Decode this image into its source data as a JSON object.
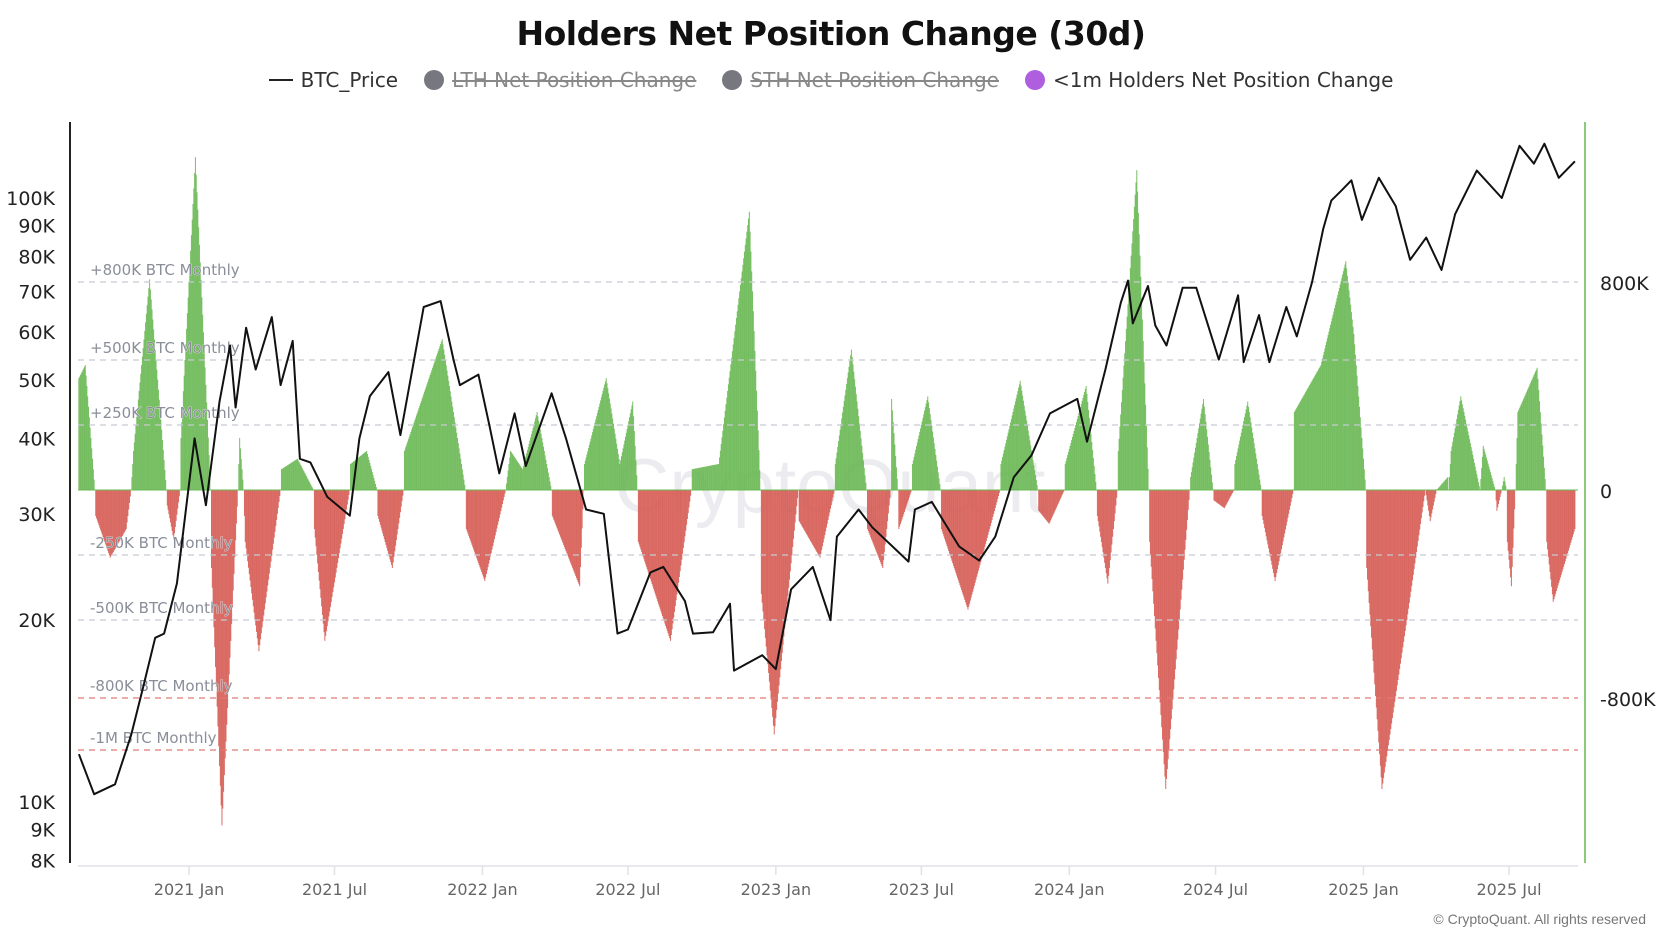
{
  "chart_data": {
    "type": "bar+line",
    "title": "Holders Net Position Change (30d)",
    "legend": [
      {
        "name": "BTC_Price",
        "marker": "line",
        "color": "#222222",
        "enabled": true
      },
      {
        "name": "LTH Net Position Change",
        "marker": "circle",
        "color": "#777780",
        "enabled": false
      },
      {
        "name": "STH Net Position Change",
        "marker": "circle",
        "color": "#777780",
        "enabled": false
      },
      {
        "name": "<1m Holders Net Position Change",
        "marker": "circle",
        "color": "#b05ee0",
        "enabled": true
      }
    ],
    "legend_placement": "top-center",
    "colors": {
      "positive": "#6ab854",
      "negative": "#d65c54",
      "price": "#111111",
      "right_axis": "#8cc97a",
      "ref_gray": "#c8cad3",
      "ref_red": "#e07a76"
    },
    "x_axis": {
      "type": "date",
      "range": [
        "2020-08-17",
        "2025-09-21"
      ],
      "tick_labels": [
        "2021 Jan",
        "2021 Jul",
        "2022 Jan",
        "2022 Jul",
        "2023 Jan",
        "2023 Jul",
        "2024 Jan",
        "2024 Jul",
        "2025 Jan",
        "2025 Jul"
      ]
    },
    "left_axis": {
      "scale": "log",
      "range": [
        8000,
        133000
      ],
      "tick_labels": [
        "100K",
        "90K",
        "80K",
        "70K",
        "60K",
        "50K",
        "40K",
        "30K",
        "20K",
        "10K",
        "9K",
        "8K"
      ],
      "tick_values": [
        100000,
        90000,
        80000,
        70000,
        60000,
        50000,
        40000,
        30000,
        20000,
        10000,
        9000,
        8000
      ]
    },
    "right_axis": {
      "scale": "linear",
      "unit": "thousand BTC",
      "tick_labels": [
        "800K",
        "0",
        "-800K"
      ],
      "tick_values": [
        800,
        0,
        -800
      ]
    },
    "reference_lines": [
      {
        "label": "+800K BTC Monthly",
        "value": 800,
        "style": "gray"
      },
      {
        "label": "+500K BTC Monthly",
        "value": 500,
        "style": "gray"
      },
      {
        "label": "+250K BTC Monthly",
        "value": 250,
        "style": "gray"
      },
      {
        "label": "-250K BTC Monthly",
        "value": -250,
        "style": "gray"
      },
      {
        "label": "-500K BTC Monthly",
        "value": -500,
        "style": "gray"
      },
      {
        "label": "-800K BTC Monthly",
        "value": -800,
        "style": "red"
      },
      {
        "label": "-1M BTC Monthly",
        "value": -1000,
        "style": "red"
      }
    ],
    "series": [
      {
        "name": "<1m Holders Net Position Change",
        "type": "bar",
        "axis": "right",
        "unit": "thousand BTC",
        "points": [
          [
            "2020-08-17",
            430
          ],
          [
            "2020-08-25",
            480
          ],
          [
            "2020-09-06",
            0
          ],
          [
            "2020-09-07",
            -100
          ],
          [
            "2020-09-25",
            -260
          ],
          [
            "2020-10-15",
            -150
          ],
          [
            "2020-10-21",
            0
          ],
          [
            "2020-10-24",
            150
          ],
          [
            "2020-11-13",
            810
          ],
          [
            "2020-12-04",
            0
          ],
          [
            "2020-12-05",
            -60
          ],
          [
            "2020-12-13",
            -190
          ],
          [
            "2020-12-21",
            0
          ],
          [
            "2020-12-22",
            200
          ],
          [
            "2021-01-09",
            1280
          ],
          [
            "2021-01-28",
            0
          ],
          [
            "2021-01-29",
            -300
          ],
          [
            "2021-02-11",
            -1290
          ],
          [
            "2021-03-03",
            0
          ],
          [
            "2021-03-05",
            200
          ],
          [
            "2021-03-10",
            0
          ],
          [
            "2021-03-12",
            -200
          ],
          [
            "2021-03-29",
            -620
          ],
          [
            "2021-04-25",
            0
          ],
          [
            "2021-04-26",
            80
          ],
          [
            "2021-05-16",
            120
          ],
          [
            "2021-06-05",
            0
          ],
          [
            "2021-06-06",
            -150
          ],
          [
            "2021-06-19",
            -580
          ],
          [
            "2021-07-20",
            0
          ],
          [
            "2021-07-21",
            100
          ],
          [
            "2021-08-10",
            150
          ],
          [
            "2021-08-23",
            0
          ],
          [
            "2021-08-24",
            -100
          ],
          [
            "2021-09-11",
            -300
          ],
          [
            "2021-09-25",
            0
          ],
          [
            "2021-09-26",
            150
          ],
          [
            "2021-11-12",
            580
          ],
          [
            "2021-12-11",
            0
          ],
          [
            "2021-12-12",
            -150
          ],
          [
            "2022-01-04",
            -350
          ],
          [
            "2022-01-30",
            0
          ],
          [
            "2022-02-05",
            150
          ],
          [
            "2022-02-20",
            80
          ],
          [
            "2022-03-10",
            300
          ],
          [
            "2022-03-28",
            0
          ],
          [
            "2022-03-29",
            -100
          ],
          [
            "2022-05-02",
            -370
          ],
          [
            "2022-05-07",
            0
          ],
          [
            "2022-05-08",
            100
          ],
          [
            "2022-06-04",
            430
          ],
          [
            "2022-06-21",
            100
          ],
          [
            "2022-07-07",
            340
          ],
          [
            "2022-07-13",
            0
          ],
          [
            "2022-07-14",
            -200
          ],
          [
            "2022-08-23",
            -580
          ],
          [
            "2022-09-18",
            0
          ],
          [
            "2022-09-19",
            80
          ],
          [
            "2022-10-22",
            100
          ],
          [
            "2022-11-29",
            1070
          ],
          [
            "2022-12-13",
            0
          ],
          [
            "2022-12-14",
            -400
          ],
          [
            "2022-12-30",
            -940
          ],
          [
            "2023-01-29",
            0
          ],
          [
            "2023-01-30",
            -120
          ],
          [
            "2023-02-25",
            -260
          ],
          [
            "2023-03-15",
            0
          ],
          [
            "2023-03-16",
            100
          ],
          [
            "2023-04-05",
            540
          ],
          [
            "2023-04-24",
            0
          ],
          [
            "2023-04-25",
            -150
          ],
          [
            "2023-05-14",
            -300
          ],
          [
            "2023-05-24",
            0
          ],
          [
            "2023-05-25",
            350
          ],
          [
            "2023-06-02",
            0
          ],
          [
            "2023-06-03",
            -150
          ],
          [
            "2023-06-19",
            0
          ],
          [
            "2023-06-20",
            100
          ],
          [
            "2023-07-09",
            360
          ],
          [
            "2023-07-25",
            0
          ],
          [
            "2023-07-26",
            -150
          ],
          [
            "2023-08-28",
            -460
          ],
          [
            "2023-10-07",
            0
          ],
          [
            "2023-10-08",
            100
          ],
          [
            "2023-11-01",
            420
          ],
          [
            "2023-11-23",
            0
          ],
          [
            "2023-11-24",
            -80
          ],
          [
            "2023-12-07",
            -130
          ],
          [
            "2023-12-26",
            0
          ],
          [
            "2023-12-27",
            100
          ],
          [
            "2024-01-22",
            400
          ],
          [
            "2024-02-04",
            0
          ],
          [
            "2024-02-05",
            -100
          ],
          [
            "2024-02-18",
            -360
          ],
          [
            "2024-03-01",
            0
          ],
          [
            "2024-03-02",
            150
          ],
          [
            "2024-03-25",
            1230
          ],
          [
            "2024-04-09",
            0
          ],
          [
            "2024-04-10",
            -200
          ],
          [
            "2024-04-30",
            -1150
          ],
          [
            "2024-05-30",
            0
          ],
          [
            "2024-05-31",
            50
          ],
          [
            "2024-06-16",
            350
          ],
          [
            "2024-06-28",
            0
          ],
          [
            "2024-06-29",
            -40
          ],
          [
            "2024-07-12",
            -70
          ],
          [
            "2024-07-24",
            0
          ],
          [
            "2024-07-25",
            100
          ],
          [
            "2024-08-10",
            340
          ],
          [
            "2024-08-27",
            0
          ],
          [
            "2024-08-28",
            -100
          ],
          [
            "2024-09-13",
            -350
          ],
          [
            "2024-10-06",
            0
          ],
          [
            "2024-10-07",
            300
          ],
          [
            "2024-11-09",
            480
          ],
          [
            "2024-12-10",
            880
          ],
          [
            "2024-12-20",
            600
          ],
          [
            "2025-01-04",
            0
          ],
          [
            "2025-01-05",
            -300
          ],
          [
            "2025-01-24",
            -1150
          ],
          [
            "2025-02-24",
            -500
          ],
          [
            "2025-03-19",
            0
          ],
          [
            "2025-03-25",
            -120
          ],
          [
            "2025-04-02",
            0
          ],
          [
            "2025-04-16",
            50
          ],
          [
            "2025-04-17",
            0
          ],
          [
            "2025-04-20",
            150
          ],
          [
            "2025-05-02",
            360
          ],
          [
            "2025-05-26",
            0
          ],
          [
            "2025-05-30",
            170
          ],
          [
            "2025-06-14",
            0
          ],
          [
            "2025-06-16",
            -80
          ],
          [
            "2025-06-22",
            0
          ],
          [
            "2025-06-25",
            50
          ],
          [
            "2025-06-28",
            0
          ],
          [
            "2025-06-29",
            -200
          ],
          [
            "2025-07-04",
            -370
          ],
          [
            "2025-07-09",
            0
          ],
          [
            "2025-07-12",
            300
          ],
          [
            "2025-08-05",
            470
          ],
          [
            "2025-08-16",
            0
          ],
          [
            "2025-08-17",
            -200
          ],
          [
            "2025-08-25",
            -430
          ],
          [
            "2025-09-21",
            -150
          ],
          [
            "2025-09-23",
            30
          ]
        ]
      },
      {
        "name": "BTC_Price",
        "type": "line",
        "axis": "left",
        "unit": "USD",
        "points": [
          [
            "2020-08-17",
            12000
          ],
          [
            "2020-09-05",
            10300
          ],
          [
            "2020-10-01",
            10700
          ],
          [
            "2020-10-21",
            12900
          ],
          [
            "2020-11-05",
            15500
          ],
          [
            "2020-11-20",
            18700
          ],
          [
            "2020-12-01",
            19000
          ],
          [
            "2020-12-17",
            23000
          ],
          [
            "2021-01-08",
            40000
          ],
          [
            "2021-01-22",
            31000
          ],
          [
            "2021-02-08",
            46000
          ],
          [
            "2021-02-21",
            57000
          ],
          [
            "2021-02-28",
            45000
          ],
          [
            "2021-03-13",
            61000
          ],
          [
            "2021-03-25",
            52000
          ],
          [
            "2021-04-14",
            63500
          ],
          [
            "2021-04-25",
            49000
          ],
          [
            "2021-05-10",
            58000
          ],
          [
            "2021-05-19",
            37000
          ],
          [
            "2021-06-01",
            36500
          ],
          [
            "2021-06-22",
            32000
          ],
          [
            "2021-07-20",
            29800
          ],
          [
            "2021-08-01",
            40000
          ],
          [
            "2021-08-14",
            47000
          ],
          [
            "2021-09-06",
            51500
          ],
          [
            "2021-09-21",
            40500
          ],
          [
            "2021-10-01",
            48000
          ],
          [
            "2021-10-20",
            66000
          ],
          [
            "2021-11-10",
            67500
          ],
          [
            "2021-11-26",
            54000
          ],
          [
            "2021-12-04",
            49000
          ],
          [
            "2021-12-27",
            51000
          ],
          [
            "2022-01-10",
            41800
          ],
          [
            "2022-01-22",
            35000
          ],
          [
            "2022-02-10",
            44000
          ],
          [
            "2022-02-24",
            36000
          ],
          [
            "2022-03-28",
            47500
          ],
          [
            "2022-04-15",
            40000
          ],
          [
            "2022-05-10",
            30500
          ],
          [
            "2022-06-01",
            30000
          ],
          [
            "2022-06-18",
            19000
          ],
          [
            "2022-07-01",
            19300
          ],
          [
            "2022-07-29",
            24000
          ],
          [
            "2022-08-14",
            24500
          ],
          [
            "2022-09-10",
            21500
          ],
          [
            "2022-09-20",
            19000
          ],
          [
            "2022-10-15",
            19100
          ],
          [
            "2022-11-05",
            21300
          ],
          [
            "2022-11-10",
            16500
          ],
          [
            "2022-12-15",
            17500
          ],
          [
            "2023-01-01",
            16600
          ],
          [
            "2023-01-20",
            22500
          ],
          [
            "2023-02-16",
            24500
          ],
          [
            "2023-03-10",
            20000
          ],
          [
            "2023-03-18",
            27500
          ],
          [
            "2023-04-14",
            30500
          ],
          [
            "2023-05-01",
            28500
          ],
          [
            "2023-06-15",
            25000
          ],
          [
            "2023-06-23",
            30500
          ],
          [
            "2023-07-14",
            31400
          ],
          [
            "2023-08-17",
            26500
          ],
          [
            "2023-09-11",
            25100
          ],
          [
            "2023-10-01",
            27500
          ],
          [
            "2023-10-24",
            34500
          ],
          [
            "2023-11-15",
            37500
          ],
          [
            "2023-12-08",
            44000
          ],
          [
            "2024-01-11",
            46500
          ],
          [
            "2024-01-23",
            39500
          ],
          [
            "2024-02-15",
            52000
          ],
          [
            "2024-03-05",
            67000
          ],
          [
            "2024-03-14",
            73000
          ],
          [
            "2024-03-20",
            62000
          ],
          [
            "2024-04-08",
            71500
          ],
          [
            "2024-04-17",
            61500
          ],
          [
            "2024-05-01",
            57000
          ],
          [
            "2024-05-21",
            71000
          ],
          [
            "2024-06-07",
            71000
          ],
          [
            "2024-07-05",
            54000
          ],
          [
            "2024-07-29",
            69000
          ],
          [
            "2024-08-05",
            53500
          ],
          [
            "2024-08-24",
            64000
          ],
          [
            "2024-09-06",
            53500
          ],
          [
            "2024-09-27",
            66000
          ],
          [
            "2024-10-10",
            59000
          ],
          [
            "2024-10-29",
            72500
          ],
          [
            "2024-11-12",
            89000
          ],
          [
            "2024-11-22",
            99000
          ],
          [
            "2024-12-05",
            103000
          ],
          [
            "2024-12-17",
            107000
          ],
          [
            "2024-12-30",
            92000
          ],
          [
            "2025-01-20",
            108000
          ],
          [
            "2025-02-10",
            97000
          ],
          [
            "2025-02-28",
            79000
          ],
          [
            "2025-03-20",
            86000
          ],
          [
            "2025-04-08",
            76000
          ],
          [
            "2025-04-25",
            94000
          ],
          [
            "2025-05-22",
            111000
          ],
          [
            "2025-06-22",
            100000
          ],
          [
            "2025-07-14",
            122000
          ],
          [
            "2025-08-01",
            114000
          ],
          [
            "2025-08-14",
            123000
          ],
          [
            "2025-09-01",
            108000
          ],
          [
            "2025-09-21",
            115000
          ]
        ]
      }
    ],
    "watermark": "CryptoQuant",
    "grid": false
  },
  "footer": "© CryptoQuant. All rights reserved"
}
